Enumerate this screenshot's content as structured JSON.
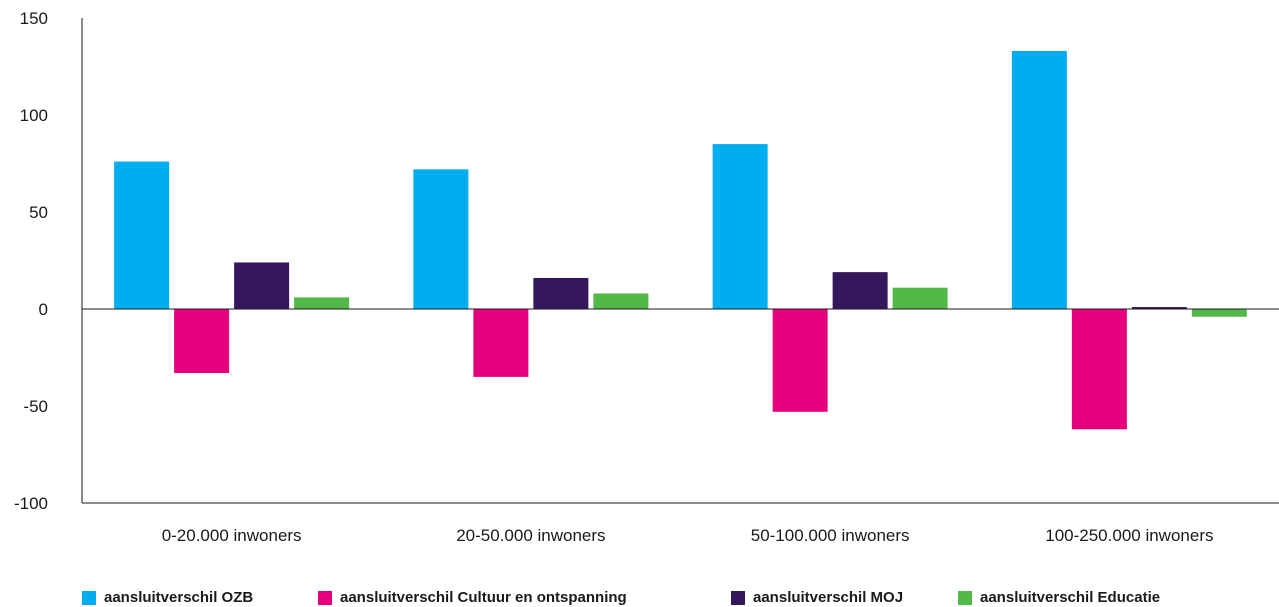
{
  "chart_data": {
    "type": "bar",
    "title": "",
    "xlabel": "",
    "ylabel": "",
    "ylim": [
      -100,
      150
    ],
    "yticks": [
      150,
      100,
      50,
      0,
      -50,
      -100
    ],
    "grid": false,
    "legend_position": "bottom",
    "categories": [
      "0-20.000 inwoners",
      "20-50.000 inwoners",
      "50-100.000 inwoners",
      "100-250.000 inwoners"
    ],
    "series": [
      {
        "name": "aansluitverschil OZB",
        "color": "#00aeef",
        "values": [
          76,
          72,
          85,
          133
        ]
      },
      {
        "name": "aansluitverschil Cultuur en ontspanning",
        "color": "#e4007c",
        "values": [
          -33,
          -35,
          -53,
          -62
        ]
      },
      {
        "name": "aansluitverschil MOJ",
        "color": "#35185b",
        "values": [
          24,
          16,
          19,
          1
        ]
      },
      {
        "name": "aansluitverschil Educatie",
        "color": "#52b848",
        "values": [
          6,
          8,
          11,
          -4
        ]
      }
    ]
  }
}
